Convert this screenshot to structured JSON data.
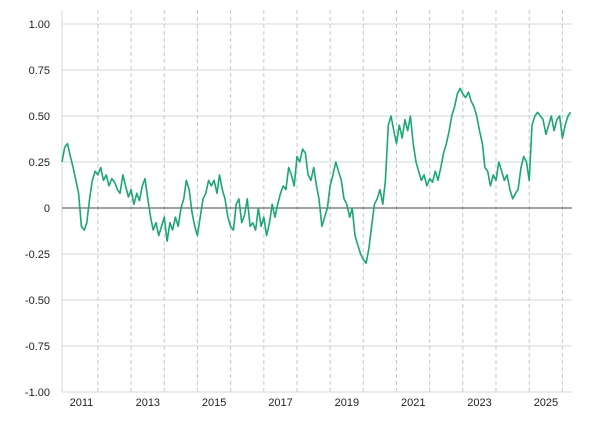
{
  "chart_data": {
    "type": "line",
    "title": "",
    "xlabel": "",
    "ylabel": "",
    "ylim": [
      -1.0,
      1.0
    ],
    "xlim": [
      "2010-06-01",
      "2025-10-15"
    ],
    "y_ticks": [
      {
        "value": 1.0,
        "label": "1.00"
      },
      {
        "value": 0.75,
        "label": "0.75"
      },
      {
        "value": 0.5,
        "label": "0.50"
      },
      {
        "value": 0.25,
        "label": "0.25"
      },
      {
        "value": 0.0,
        "label": "0"
      },
      {
        "value": -0.25,
        "label": "-0.25"
      },
      {
        "value": -0.5,
        "label": "-0.50"
      },
      {
        "value": -0.75,
        "label": "-0.75"
      },
      {
        "value": -1.0,
        "label": "-1.00"
      }
    ],
    "x_labels": [
      {
        "date": "2011-01-01",
        "label": "2011"
      },
      {
        "date": "2013-01-01",
        "label": "2013"
      },
      {
        "date": "2015-01-01",
        "label": "2015"
      },
      {
        "date": "2017-01-01",
        "label": "2017"
      },
      {
        "date": "2019-01-01",
        "label": "2019"
      },
      {
        "date": "2021-01-01",
        "label": "2021"
      },
      {
        "date": "2023-01-01",
        "label": "2023"
      },
      {
        "date": "2025-01-01",
        "label": "2025"
      }
    ],
    "x_gridlines": [
      "2011-07-01",
      "2012-07-01",
      "2013-07-01",
      "2014-07-01",
      "2015-07-01",
      "2016-07-01",
      "2017-07-01",
      "2018-07-01",
      "2019-07-01",
      "2020-07-01",
      "2021-07-01",
      "2022-07-01",
      "2023-07-01",
      "2024-07-01",
      "2025-07-01"
    ],
    "grid": {
      "horizontal": true,
      "vertical": true,
      "vertical_style": "dashed"
    },
    "series": [
      {
        "color": "#1aa870",
        "x": [
          "2010-06-01",
          "2010-07-01",
          "2010-08-01",
          "2010-09-01",
          "2010-10-01",
          "2010-11-01",
          "2010-12-01",
          "2011-01-01",
          "2011-02-01",
          "2011-03-01",
          "2011-04-01",
          "2011-05-01",
          "2011-06-01",
          "2011-07-01",
          "2011-08-01",
          "2011-09-01",
          "2011-10-01",
          "2011-11-01",
          "2011-12-01",
          "2012-01-01",
          "2012-02-01",
          "2012-03-01",
          "2012-04-01",
          "2012-05-01",
          "2012-06-01",
          "2012-07-01",
          "2012-08-01",
          "2012-09-01",
          "2012-10-01",
          "2012-11-01",
          "2012-12-01",
          "2013-01-01",
          "2013-02-01",
          "2013-03-01",
          "2013-04-01",
          "2013-05-01",
          "2013-06-01",
          "2013-07-01",
          "2013-08-01",
          "2013-09-01",
          "2013-10-01",
          "2013-11-01",
          "2013-12-01",
          "2014-01-01",
          "2014-02-01",
          "2014-03-01",
          "2014-04-01",
          "2014-05-01",
          "2014-06-01",
          "2014-07-01",
          "2014-08-01",
          "2014-09-01",
          "2014-10-01",
          "2014-11-01",
          "2014-12-01",
          "2015-01-01",
          "2015-02-01",
          "2015-03-01",
          "2015-04-01",
          "2015-05-01",
          "2015-06-01",
          "2015-07-01",
          "2015-08-01",
          "2015-09-01",
          "2015-10-01",
          "2015-11-01",
          "2015-12-01",
          "2016-01-01",
          "2016-02-01",
          "2016-03-01",
          "2016-04-01",
          "2016-05-01",
          "2016-06-01",
          "2016-07-01",
          "2016-08-01",
          "2016-09-01",
          "2016-10-01",
          "2016-11-01",
          "2016-12-01",
          "2017-01-01",
          "2017-02-01",
          "2017-03-01",
          "2017-04-01",
          "2017-05-01",
          "2017-06-01",
          "2017-07-01",
          "2017-08-01",
          "2017-09-01",
          "2017-10-01",
          "2017-11-01",
          "2017-12-01",
          "2018-01-01",
          "2018-02-01",
          "2018-03-01",
          "2018-04-01",
          "2018-05-01",
          "2018-06-01",
          "2018-07-01",
          "2018-08-01",
          "2018-09-01",
          "2018-10-01",
          "2018-11-01",
          "2018-12-01",
          "2019-01-01",
          "2019-02-01",
          "2019-03-01",
          "2019-04-01",
          "2019-05-01",
          "2019-06-01",
          "2019-07-01",
          "2019-08-01",
          "2019-09-01",
          "2019-10-01",
          "2019-11-01",
          "2019-12-01",
          "2020-01-01",
          "2020-02-01",
          "2020-03-01",
          "2020-04-01",
          "2020-05-01",
          "2020-06-01",
          "2020-07-01",
          "2020-08-01",
          "2020-09-01",
          "2020-10-01",
          "2020-11-01",
          "2020-12-01",
          "2021-01-01",
          "2021-02-01",
          "2021-03-01",
          "2021-04-01",
          "2021-05-01",
          "2021-06-01",
          "2021-07-01",
          "2021-08-01",
          "2021-09-01",
          "2021-10-01",
          "2021-11-01",
          "2021-12-01",
          "2022-01-01",
          "2022-02-01",
          "2022-03-01",
          "2022-04-01",
          "2022-05-01",
          "2022-06-01",
          "2022-07-01",
          "2022-08-01",
          "2022-09-01",
          "2022-10-01",
          "2022-11-01",
          "2022-12-01",
          "2023-01-01",
          "2023-02-01",
          "2023-03-01",
          "2023-04-01",
          "2023-05-01",
          "2023-06-01",
          "2023-07-01",
          "2023-08-01",
          "2023-09-01",
          "2023-10-01",
          "2023-11-01",
          "2023-12-01",
          "2024-01-01",
          "2024-02-01",
          "2024-03-01",
          "2024-04-01",
          "2024-05-01",
          "2024-06-01",
          "2024-07-01",
          "2024-08-01",
          "2024-09-01",
          "2024-10-01",
          "2024-11-01",
          "2024-12-01",
          "2025-01-01",
          "2025-02-01",
          "2025-03-01",
          "2025-04-01",
          "2025-05-01",
          "2025-06-01",
          "2025-07-01",
          "2025-08-01",
          "2025-09-01",
          "2025-10-01"
        ],
        "y": [
          0.25,
          0.33,
          0.35,
          0.28,
          0.22,
          0.15,
          0.08,
          -0.1,
          -0.12,
          -0.08,
          0.05,
          0.15,
          0.2,
          0.18,
          0.22,
          0.15,
          0.18,
          0.12,
          0.16,
          0.14,
          0.1,
          0.08,
          0.18,
          0.12,
          0.06,
          0.1,
          0.02,
          0.08,
          0.04,
          0.12,
          0.16,
          0.05,
          -0.05,
          -0.12,
          -0.08,
          -0.15,
          -0.1,
          -0.05,
          -0.18,
          -0.08,
          -0.12,
          -0.05,
          -0.1,
          0.0,
          0.05,
          0.15,
          0.1,
          -0.02,
          -0.1,
          -0.15,
          -0.05,
          0.05,
          0.08,
          0.15,
          0.12,
          0.15,
          0.08,
          0.18,
          0.1,
          0.05,
          -0.05,
          -0.1,
          -0.12,
          0.02,
          0.05,
          -0.08,
          -0.04,
          0.05,
          -0.1,
          -0.08,
          -0.12,
          0.0,
          -0.1,
          -0.05,
          -0.15,
          -0.08,
          0.02,
          -0.05,
          0.02,
          0.08,
          0.12,
          0.1,
          0.22,
          0.18,
          0.12,
          0.28,
          0.25,
          0.32,
          0.3,
          0.18,
          0.15,
          0.22,
          0.12,
          0.05,
          -0.1,
          -0.05,
          0.0,
          0.12,
          0.18,
          0.25,
          0.2,
          0.15,
          0.05,
          0.02,
          -0.05,
          0.0,
          -0.15,
          -0.2,
          -0.25,
          -0.28,
          -0.3,
          -0.22,
          -0.1,
          0.02,
          0.05,
          0.1,
          0.02,
          0.15,
          0.45,
          0.5,
          0.42,
          0.35,
          0.45,
          0.38,
          0.48,
          0.42,
          0.5,
          0.35,
          0.25,
          0.2,
          0.15,
          0.18,
          0.12,
          0.16,
          0.14,
          0.2,
          0.15,
          0.22,
          0.3,
          0.35,
          0.42,
          0.5,
          0.55,
          0.62,
          0.65,
          0.62,
          0.6,
          0.63,
          0.58,
          0.55,
          0.5,
          0.42,
          0.35,
          0.22,
          0.2,
          0.12,
          0.18,
          0.15,
          0.25,
          0.2,
          0.15,
          0.18,
          0.1,
          0.05,
          0.08,
          0.1,
          0.22,
          0.28,
          0.25,
          0.15,
          0.45,
          0.5,
          0.52,
          0.5,
          0.48,
          0.4,
          0.45,
          0.5,
          0.42,
          0.48,
          0.5,
          0.38,
          0.45,
          0.5,
          0.52
        ]
      }
    ]
  }
}
